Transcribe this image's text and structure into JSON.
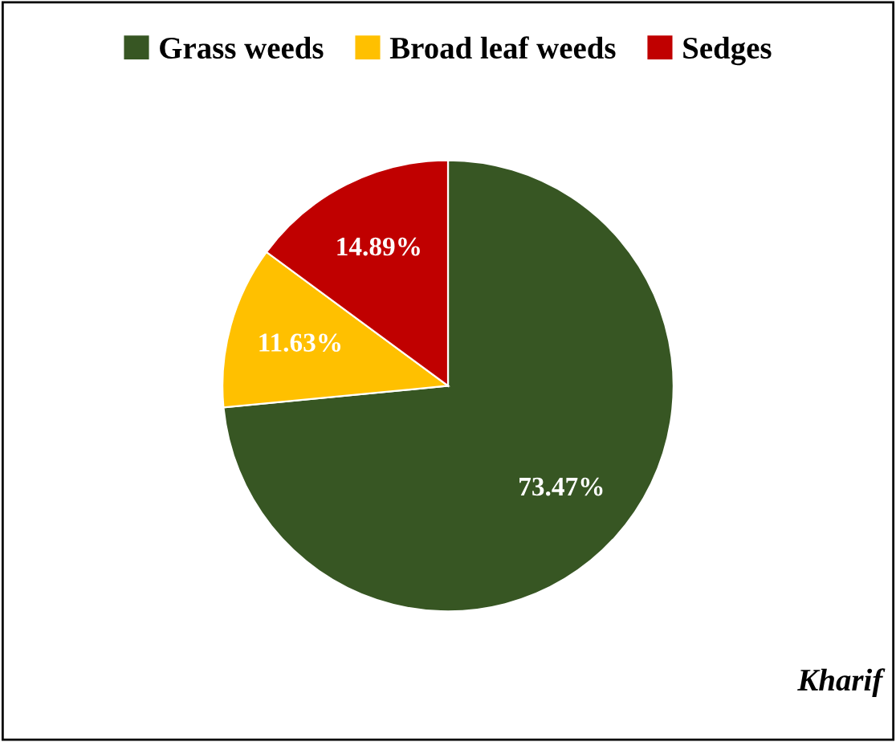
{
  "chart_data": {
    "type": "pie",
    "categories": [
      "Grass weeds",
      "Broad leaf weeds",
      "Sedges"
    ],
    "values": [
      73.47,
      11.63,
      14.89
    ],
    "colors": [
      "#375623",
      "#ffc000",
      "#c00000"
    ],
    "value_labels": [
      "73.47%",
      "11.63%",
      "14.89%"
    ],
    "legend": "top",
    "annotations": [
      "Kharif"
    ]
  }
}
